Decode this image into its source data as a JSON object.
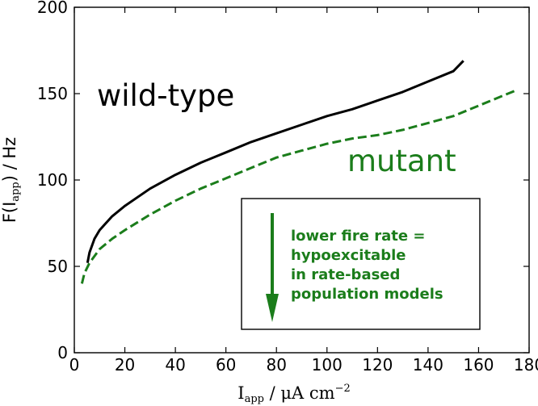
{
  "chart_data": {
    "type": "line",
    "xlabel": {
      "main": "I",
      "sub": "app",
      "rest": " / μA cm",
      "sup": "−2"
    },
    "ylabel": {
      "main": "F(I",
      "sub": "app",
      "rest": ") / Hz"
    },
    "xlim": [
      0,
      180
    ],
    "ylim": [
      0,
      200
    ],
    "xticks": [
      0,
      20,
      40,
      60,
      80,
      100,
      120,
      140,
      160,
      180
    ],
    "yticks": [
      0,
      50,
      100,
      150,
      200
    ],
    "grid": false,
    "series": [
      {
        "name": "wild-type",
        "color": "#000000",
        "style": "solid",
        "x": [
          5.2,
          6,
          8,
          10,
          15,
          20,
          30,
          40,
          50,
          60,
          70,
          80,
          90,
          100,
          110,
          120,
          130,
          140,
          150,
          154
        ],
        "y": [
          52,
          58,
          66,
          71,
          79,
          85,
          95,
          103,
          110,
          116,
          122,
          127,
          132,
          137,
          141,
          146,
          151,
          157,
          163,
          169
        ]
      },
      {
        "name": "mutant",
        "color": "#1b7d1b",
        "style": "dashed",
        "x": [
          3,
          4,
          6,
          8,
          10,
          15,
          20,
          30,
          40,
          50,
          60,
          70,
          80,
          90,
          100,
          110,
          120,
          130,
          140,
          150,
          160,
          170,
          175
        ],
        "y": [
          40,
          46,
          52,
          56,
          60,
          66,
          71,
          80,
          88,
          95,
          101,
          107,
          113,
          117,
          121,
          124,
          126,
          129,
          133,
          137,
          143,
          149,
          152
        ]
      }
    ],
    "annotations": {
      "wild_type_label": "wild-type",
      "mutant_label": "mutant",
      "box_lines": [
        "lower fire rate =",
        "hypoexcitable",
        "in rate-based",
        "population models"
      ]
    }
  }
}
